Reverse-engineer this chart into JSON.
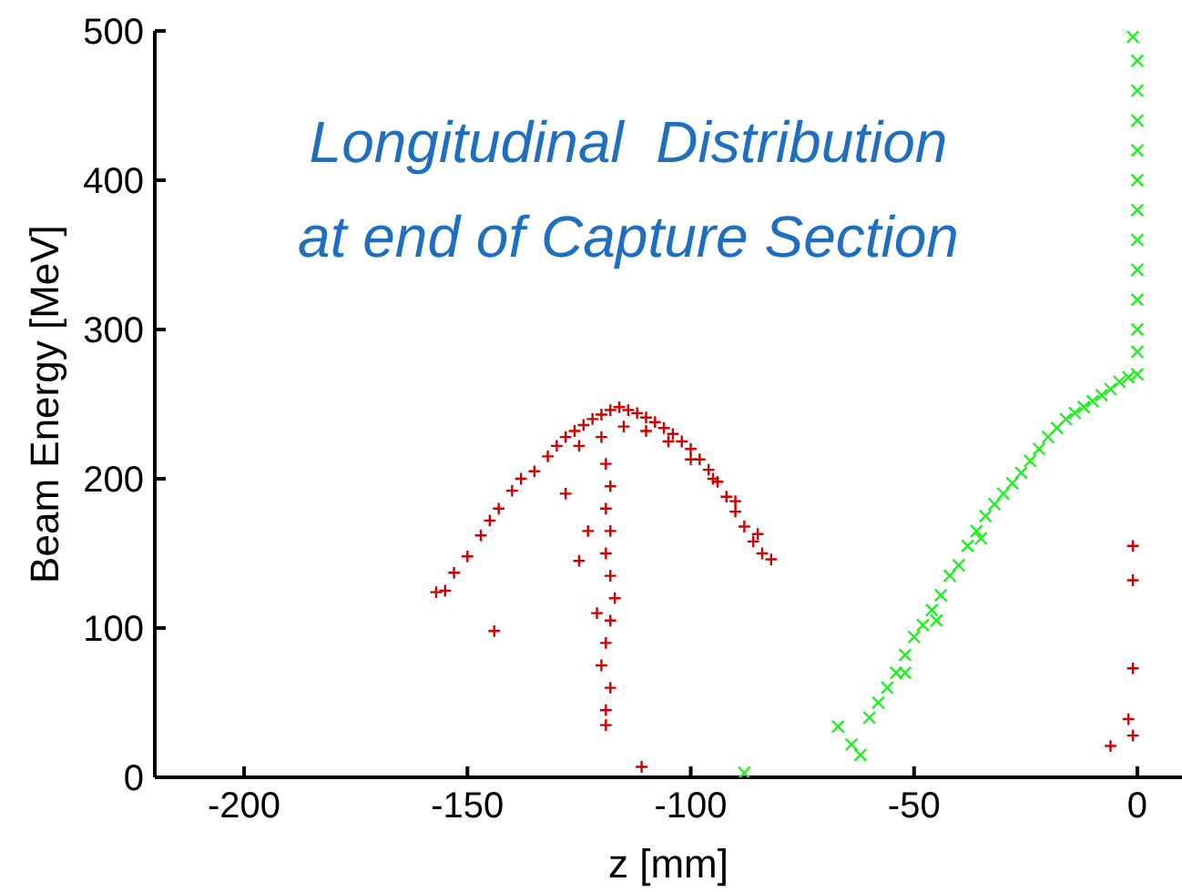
{
  "chart_data": {
    "type": "scatter",
    "title": "Longitudinal  Distribution\nat end of Capture Section",
    "xlabel": "z [mm]",
    "ylabel": "Beam Energy [MeV]",
    "xlim": [
      -220,
      10
    ],
    "xticks": [
      -200,
      -150,
      -100,
      -50,
      0
    ],
    "ylim": [
      0,
      500
    ],
    "yticks": [
      0,
      100,
      200,
      300,
      400,
      500
    ],
    "grid": false,
    "legend": false,
    "marker": "cross",
    "series": [
      {
        "color": "#d00000",
        "x": [
          -135,
          -132,
          -130,
          -128,
          -126,
          -124,
          -122,
          -120,
          -118,
          -116,
          -114,
          -112,
          -110,
          -108,
          -106,
          -104,
          -102,
          -100,
          -98,
          -96,
          -94,
          -92,
          -90,
          -88,
          -86,
          -84,
          -82,
          -125,
          -120,
          -115,
          -110,
          -105,
          -100,
          -95,
          -90,
          -85,
          -138,
          -140,
          -143,
          -145,
          -147,
          -150,
          -153,
          -155,
          -157,
          -144,
          -119,
          -118,
          -119,
          -118,
          -119,
          -118,
          -117,
          -118,
          -119,
          -120,
          -118,
          -119,
          -119,
          -121,
          -125,
          -128,
          -123,
          -111,
          -1,
          -1,
          -1,
          -2,
          -1,
          -6
        ],
        "values": [
          205,
          215,
          222,
          228,
          232,
          236,
          240,
          243,
          246,
          248,
          246,
          244,
          241,
          238,
          234,
          230,
          225,
          220,
          213,
          206,
          198,
          188,
          178,
          168,
          158,
          150,
          146,
          222,
          228,
          235,
          232,
          225,
          213,
          200,
          185,
          163,
          200,
          192,
          180,
          172,
          162,
          148,
          137,
          125,
          124,
          98,
          210,
          195,
          180,
          165,
          150,
          135,
          120,
          105,
          90,
          75,
          60,
          45,
          35,
          110,
          145,
          190,
          165,
          7,
          155,
          132,
          73,
          39,
          28,
          21
        ]
      },
      {
        "color": "#22ee22",
        "x": [
          -88,
          -67,
          -64,
          -62,
          -60,
          -58,
          -56,
          -54,
          -52,
          -50,
          -48,
          -46,
          -44,
          -42,
          -40,
          -38,
          -36,
          -34,
          -32,
          -30,
          -28,
          -26,
          -24,
          -22,
          -20,
          -18,
          -16,
          -14,
          -12,
          -10,
          -8,
          -6,
          -4,
          -2,
          0,
          0,
          0,
          0,
          0,
          0,
          0,
          0,
          0,
          0,
          0,
          0,
          -1,
          -52,
          -45,
          -35
        ],
        "values": [
          3,
          34,
          22,
          15,
          40,
          50,
          60,
          70,
          82,
          94,
          102,
          112,
          122,
          135,
          142,
          155,
          165,
          175,
          183,
          190,
          197,
          204,
          212,
          220,
          228,
          234,
          240,
          244,
          248,
          252,
          256,
          260,
          265,
          268,
          270,
          285,
          300,
          320,
          340,
          360,
          380,
          400,
          420,
          440,
          460,
          480,
          496,
          70,
          105,
          160
        ]
      }
    ]
  }
}
